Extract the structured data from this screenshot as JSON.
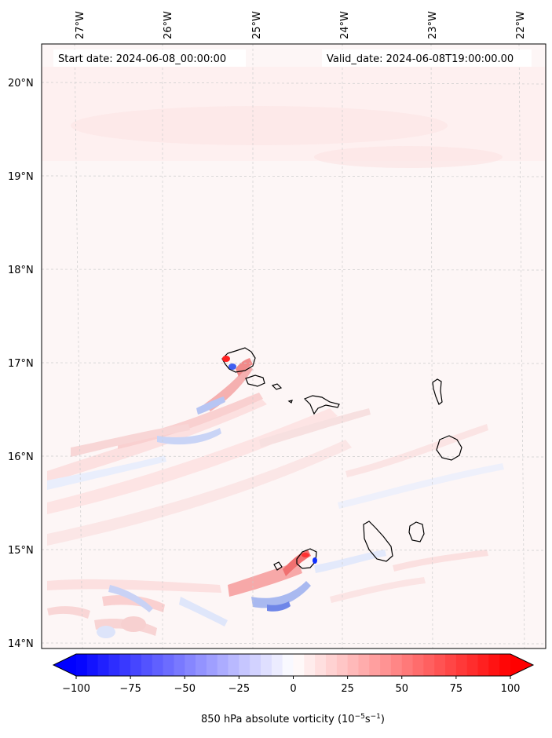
{
  "map": {
    "start_date": "Start date: 2024-06-08_00:00:00",
    "valid_date": "Valid_date: 2024-06-08T19:00:00.00",
    "lon_labels": [
      "27°W",
      "26°W",
      "25°W",
      "24°W",
      "23°W",
      "22°W"
    ],
    "lat_labels": [
      "20°N",
      "19°N",
      "18°N",
      "17°N",
      "16°N",
      "15°N",
      "14°N"
    ],
    "grid": true,
    "background_color": "#fdf6f6"
  },
  "colorbar": {
    "ticks": [
      "−100",
      "−75",
      "−50",
      "−25",
      "0",
      "25",
      "50",
      "75",
      "100"
    ],
    "values": [
      -100,
      -75,
      -50,
      -25,
      0,
      25,
      50,
      75,
      100
    ],
    "label_prefix": "850 hPa absolute vorticity (10",
    "label_sup1": "−5",
    "label_mid": "s",
    "label_sup2": "−1",
    "label_suffix": ")",
    "colormap": "bwr",
    "low_color": "#0000ff",
    "high_color": "#ff0000"
  }
}
